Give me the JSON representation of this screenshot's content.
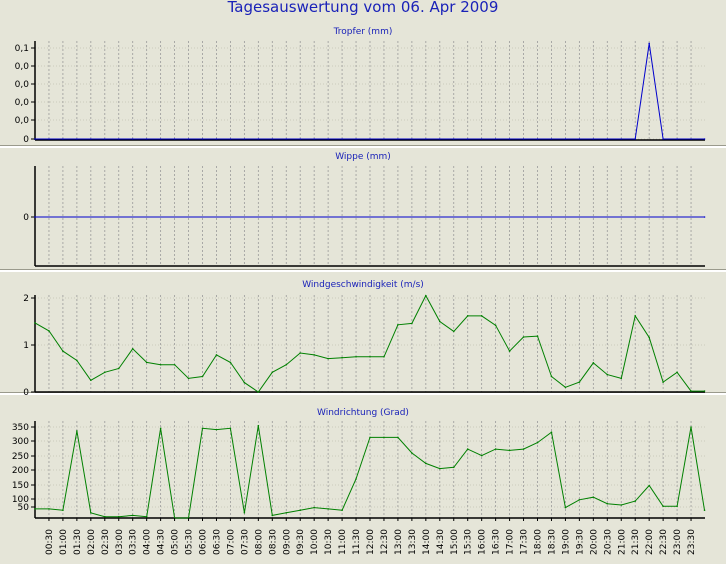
{
  "title": "Tagesauswertung vom 06. Apr 2009",
  "time_labels": [
    "00:30",
    "01:00",
    "01:30",
    "02:00",
    "02:30",
    "03:00",
    "03:30",
    "04:00",
    "04:30",
    "05:00",
    "05:30",
    "06:00",
    "06:30",
    "07:00",
    "07:30",
    "08:00",
    "08:30",
    "09:00",
    "09:30",
    "10:00",
    "10:30",
    "11:00",
    "11:30",
    "12:00",
    "12:30",
    "13:00",
    "13:30",
    "14:00",
    "14:30",
    "15:00",
    "15:30",
    "16:00",
    "16:30",
    "17:00",
    "17:30",
    "18:00",
    "18:30",
    "19:00",
    "19:30",
    "20:00",
    "20:30",
    "21:00",
    "21:30",
    "22:00",
    "22:30",
    "23:00",
    "23:30"
  ],
  "chart_data": [
    {
      "type": "line",
      "title": "Tropfer (mm)",
      "color": "#0000cc",
      "y_tick_labels": [
        "0,1",
        "0,0",
        "0,0",
        "0,0",
        "0,0",
        "0"
      ],
      "ylim": [
        0,
        0.1
      ],
      "x": [
        "00:00",
        "00:30",
        "01:00",
        "01:30",
        "02:00",
        "02:30",
        "03:00",
        "03:30",
        "04:00",
        "04:30",
        "05:00",
        "05:30",
        "06:00",
        "06:30",
        "07:00",
        "07:30",
        "08:00",
        "08:30",
        "09:00",
        "09:30",
        "10:00",
        "10:30",
        "11:00",
        "11:30",
        "12:00",
        "12:30",
        "13:00",
        "13:30",
        "14:00",
        "14:30",
        "15:00",
        "15:30",
        "16:00",
        "16:30",
        "17:00",
        "17:30",
        "18:00",
        "18:30",
        "19:00",
        "19:30",
        "20:00",
        "20:30",
        "21:00",
        "21:30",
        "22:00",
        "22:30",
        "23:00",
        "23:30",
        "23:59"
      ],
      "values": [
        0,
        0,
        0,
        0,
        0,
        0,
        0,
        0,
        0,
        0,
        0,
        0,
        0,
        0,
        0,
        0,
        0,
        0,
        0,
        0,
        0,
        0,
        0,
        0,
        0,
        0,
        0,
        0,
        0,
        0,
        0,
        0,
        0,
        0,
        0,
        0,
        0,
        0,
        0,
        0,
        0,
        0,
        0,
        0,
        0.105,
        0,
        0,
        0,
        0
      ]
    },
    {
      "type": "line",
      "title": "Wippe (mm)",
      "color": "#0000cc",
      "y_tick_labels": [
        "0"
      ],
      "ylim": [
        -1,
        1
      ],
      "x": [
        "00:00",
        "23:59"
      ],
      "values": [
        0,
        0
      ]
    },
    {
      "type": "line",
      "title": "Windgeschwindigkeit (m/s)",
      "color": "#008000",
      "y_tick_labels": [
        "2",
        "1",
        "0"
      ],
      "ylim": [
        0,
        2
      ],
      "x": [
        "00:00",
        "00:30",
        "01:00",
        "01:30",
        "02:00",
        "02:30",
        "03:00",
        "03:30",
        "04:00",
        "04:30",
        "05:00",
        "05:30",
        "06:00",
        "06:30",
        "07:00",
        "07:30",
        "08:00",
        "08:30",
        "09:00",
        "09:30",
        "10:00",
        "10:30",
        "11:00",
        "11:30",
        "12:00",
        "12:30",
        "13:00",
        "13:30",
        "14:00",
        "14:30",
        "15:00",
        "15:30",
        "16:00",
        "16:30",
        "17:00",
        "17:30",
        "18:00",
        "18:30",
        "19:00",
        "19:30",
        "20:00",
        "20:30",
        "21:00",
        "21:30",
        "22:00",
        "22:30",
        "23:00",
        "23:30",
        "23:59"
      ],
      "values": [
        1.47,
        1.3,
        0.87,
        0.67,
        0.25,
        0.42,
        0.5,
        0.92,
        0.63,
        0.58,
        0.58,
        0.29,
        0.33,
        0.79,
        0.63,
        0.2,
        0,
        0.42,
        0.58,
        0.83,
        0.79,
        0.71,
        0.73,
        0.75,
        0.75,
        0.75,
        1.43,
        1.46,
        2.05,
        1.5,
        1.29,
        1.62,
        1.62,
        1.42,
        0.87,
        1.17,
        1.19,
        0.33,
        0.1,
        0.21,
        0.62,
        0.37,
        0.29,
        1.62,
        1.16,
        0.21,
        0.42,
        0.02,
        0.02
      ]
    },
    {
      "type": "line",
      "title": "Windrichtung (Grad)",
      "color": "#008000",
      "y_tick_labels": [
        "350",
        "300",
        "250",
        "200",
        "150",
        "100",
        "50"
      ],
      "ylim": [
        0,
        360
      ],
      "x": [
        "00:00",
        "00:30",
        "01:00",
        "01:30",
        "02:00",
        "02:30",
        "03:00",
        "03:30",
        "04:00",
        "04:30",
        "05:00",
        "05:30",
        "06:00",
        "06:30",
        "07:00",
        "07:30",
        "08:00",
        "08:30",
        "09:00",
        "09:30",
        "10:00",
        "10:30",
        "11:00",
        "11:30",
        "12:00",
        "12:30",
        "13:00",
        "13:30",
        "14:00",
        "14:30",
        "15:00",
        "15:30",
        "16:00",
        "16:30",
        "17:00",
        "17:30",
        "18:00",
        "18:30",
        "19:00",
        "19:30",
        "20:00",
        "20:30",
        "21:00",
        "21:30",
        "22:00",
        "22:30",
        "23:00",
        "23:30",
        "23:59"
      ],
      "values": [
        35,
        35,
        30,
        335,
        20,
        5,
        5,
        10,
        5,
        345,
        0,
        0,
        345,
        340,
        345,
        20,
        355,
        10,
        20,
        30,
        40,
        35,
        30,
        150,
        310,
        310,
        310,
        250,
        210,
        190,
        195,
        265,
        240,
        265,
        260,
        265,
        290,
        330,
        40,
        70,
        80,
        55,
        50,
        65,
        125,
        45,
        45,
        350,
        30
      ]
    }
  ]
}
